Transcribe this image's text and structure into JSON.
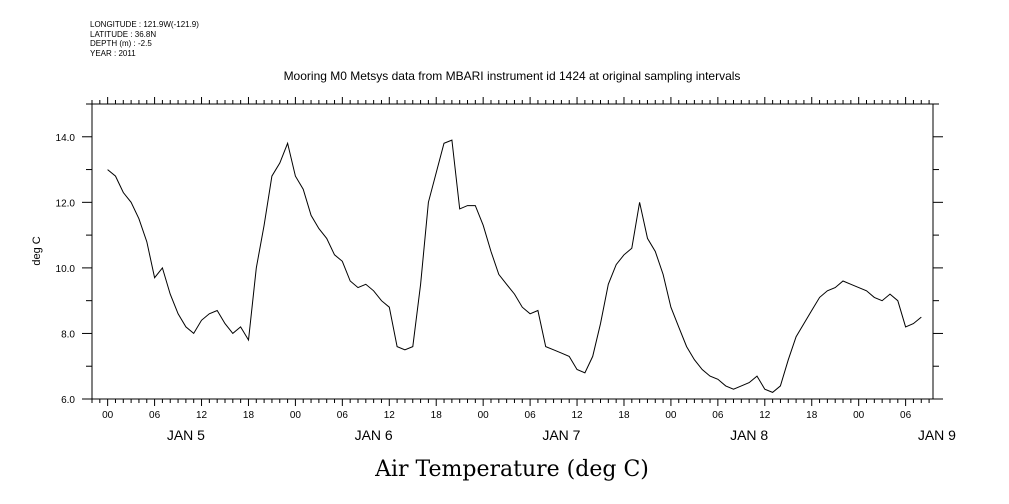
{
  "meta": {
    "longitude": "LONGITUDE : 121.9W(-121.9)",
    "latitude": "LATITUDE : 36.8N",
    "depth": "DEPTH (m) : -2.5",
    "year": "YEAR : 2011"
  },
  "chart_data": {
    "type": "line",
    "title": "Mooring M0 Metsys data from MBARI instrument id 1424 at original sampling intervals",
    "xlabel": "Air Temperature (deg C)",
    "ylabel": "deg C",
    "ylim": [
      6.0,
      15.0
    ],
    "yticks": [
      "6.0",
      "8.0",
      "10.0",
      "12.0",
      "14.0"
    ],
    "hour_tick_labels": [
      "00",
      "06",
      "12",
      "18",
      "00",
      "06",
      "12",
      "18",
      "00",
      "06",
      "12",
      "18",
      "00",
      "06",
      "12",
      "18",
      "00",
      "06"
    ],
    "day_labels": [
      "JAN  5",
      "JAN  6",
      "JAN  7",
      "JAN  8",
      "JAN  9"
    ],
    "xlim_hours": [
      -2,
      105.5
    ],
    "grid": false,
    "series": [
      {
        "x": [
          0,
          1,
          2,
          3,
          4,
          5,
          6,
          7,
          8,
          9,
          10,
          11,
          12,
          13,
          14,
          15,
          16,
          17,
          18,
          19,
          20,
          21,
          22,
          23,
          24,
          25,
          26,
          27,
          28,
          29,
          30,
          31,
          32,
          33,
          34,
          35,
          36,
          37,
          38,
          39,
          40,
          41,
          42,
          43,
          44,
          45,
          46,
          47,
          48,
          49,
          50,
          51,
          52,
          53,
          54,
          55,
          56,
          57,
          58,
          59,
          60,
          61,
          62,
          63,
          64,
          65,
          66,
          67,
          68,
          69,
          70,
          71,
          72,
          73,
          74,
          75,
          76,
          77,
          78,
          79,
          80,
          81,
          82,
          83,
          84,
          85,
          86,
          87,
          88,
          89,
          90,
          91,
          92,
          93,
          94,
          95,
          96,
          97,
          98,
          99,
          100,
          101,
          102,
          103,
          104
        ],
        "y": [
          13.0,
          12.8,
          12.3,
          12.0,
          11.5,
          10.8,
          9.7,
          10.0,
          9.2,
          8.6,
          8.2,
          8.0,
          8.4,
          8.6,
          8.7,
          8.3,
          8.0,
          8.2,
          7.8,
          10.0,
          11.3,
          12.8,
          13.2,
          13.8,
          12.8,
          12.4,
          11.6,
          11.2,
          10.9,
          10.4,
          10.2,
          9.6,
          9.4,
          9.5,
          9.3,
          9.0,
          8.8,
          7.6,
          7.5,
          7.6,
          9.5,
          12.0,
          12.9,
          13.8,
          13.9,
          11.8,
          11.9,
          11.9,
          11.3,
          10.5,
          9.8,
          9.5,
          9.2,
          8.8,
          8.6,
          8.7,
          7.6,
          7.5,
          7.4,
          7.3,
          6.9,
          6.8,
          7.3,
          8.3,
          9.5,
          10.1,
          10.4,
          10.6,
          12.0,
          10.9,
          10.5,
          9.8,
          8.8,
          8.2,
          7.6,
          7.2,
          6.9,
          6.7,
          6.6,
          6.4,
          6.3,
          6.4,
          6.5,
          6.7,
          6.3,
          6.2,
          6.4,
          7.2,
          7.9,
          8.3,
          8.7,
          9.1,
          9.3,
          9.4,
          9.6,
          9.5,
          9.4,
          9.3,
          9.1,
          9.0,
          9.2,
          9.0,
          8.2,
          8.3,
          8.5
        ]
      }
    ]
  }
}
